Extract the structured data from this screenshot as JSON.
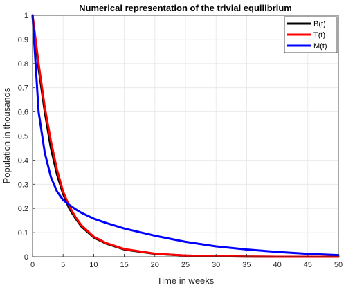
{
  "chart_data": {
    "type": "line",
    "title": "Numerical representation of the trivial equilibrium",
    "xlabel": "Time in weeks",
    "ylabel": "Population in thousands",
    "xlim": [
      0,
      50
    ],
    "ylim": [
      0,
      1
    ],
    "xticks": [
      0,
      5,
      10,
      15,
      20,
      25,
      30,
      35,
      40,
      45,
      50
    ],
    "yticks": [
      0,
      0.1,
      0.2,
      0.3,
      0.4,
      0.5,
      0.6,
      0.7,
      0.8,
      0.9,
      1
    ],
    "grid": true,
    "legend_position": "top-right",
    "x": [
      0,
      1,
      2,
      3,
      4,
      5,
      6,
      7,
      8,
      10,
      12,
      15,
      20,
      25,
      30,
      35,
      40,
      45,
      50
    ],
    "series": [
      {
        "name": "B(t)",
        "color": "#000000",
        "values": [
          1.0,
          0.78,
          0.6,
          0.45,
          0.34,
          0.26,
          0.2,
          0.16,
          0.125,
          0.08,
          0.055,
          0.03,
          0.012,
          0.005,
          0.002,
          0.001,
          0.0,
          0.0,
          0.0
        ]
      },
      {
        "name": "T(t)",
        "color": "#ff0000",
        "values": [
          1.0,
          0.8,
          0.62,
          0.48,
          0.36,
          0.27,
          0.21,
          0.165,
          0.13,
          0.083,
          0.057,
          0.032,
          0.013,
          0.005,
          0.002,
          0.001,
          0.0,
          0.0,
          0.0
        ]
      },
      {
        "name": "M(t)",
        "color": "#0000ff",
        "values": [
          1.0,
          0.6,
          0.43,
          0.33,
          0.27,
          0.235,
          0.215,
          0.197,
          0.182,
          0.158,
          0.14,
          0.117,
          0.087,
          0.062,
          0.043,
          0.03,
          0.02,
          0.012,
          0.007
        ]
      }
    ]
  }
}
